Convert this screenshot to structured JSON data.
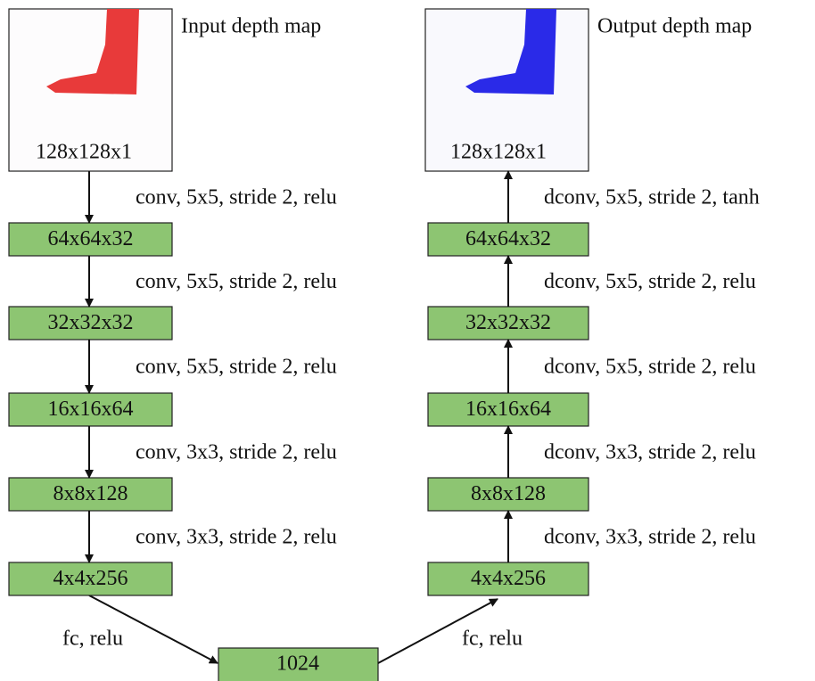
{
  "input": {
    "title": "Input depth map",
    "size": "128x128x1"
  },
  "output": {
    "title": "Output depth map",
    "size": "128x128x1"
  },
  "encoder": {
    "layers": [
      "64x64x32",
      "32x32x32",
      "16x16x64",
      "8x8x128",
      "4x4x256"
    ],
    "ops": [
      "conv, 5x5, stride 2, relu",
      "conv, 5x5, stride 2, relu",
      "conv, 5x5, stride 2, relu",
      "conv, 3x3, stride 2, relu",
      "conv, 3x3, stride 2, relu"
    ]
  },
  "decoder": {
    "layers": [
      "64x64x32",
      "32x32x32",
      "16x16x64",
      "8x8x128",
      "4x4x256"
    ],
    "ops": [
      "dconv, 5x5, stride 2, tanh",
      "dconv, 5x5, stride 2, relu",
      "dconv, 5x5, stride 2, relu",
      "dconv, 3x3, stride 2, relu",
      "dconv, 3x3, stride 2, relu"
    ]
  },
  "bottleneck": {
    "label": "1024",
    "fc_in": "fc, relu",
    "fc_out": "fc, relu"
  }
}
